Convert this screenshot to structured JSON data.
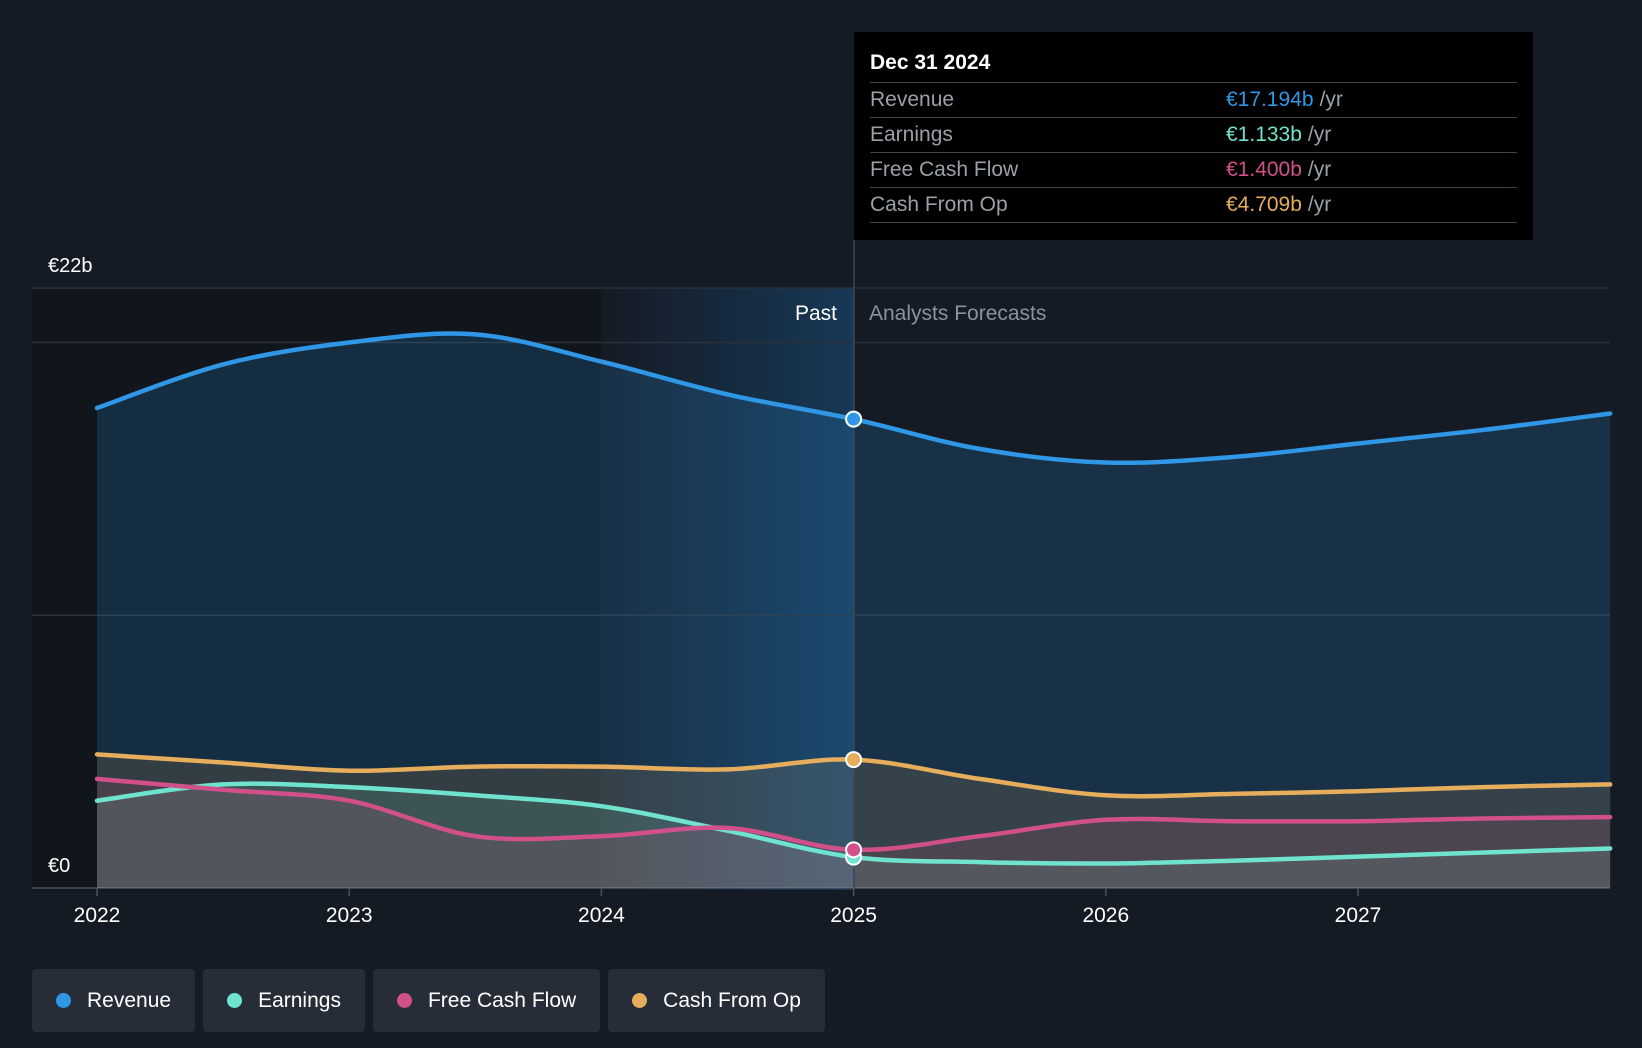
{
  "chart_data": {
    "type": "area",
    "y_axis": {
      "min": 0,
      "max": 22,
      "top_label": "€22b",
      "bottom_label": "€0"
    },
    "x_ticks": [
      "2022",
      "2023",
      "2024",
      "2025",
      "2026",
      "2027"
    ],
    "divider": {
      "x": 2025,
      "past_label": "Past",
      "forecast_label": "Analysts Forecasts"
    },
    "series": [
      {
        "name": "Revenue",
        "color": "#2f97e6",
        "points": [
          [
            2022,
            17.6
          ],
          [
            2022.5,
            19.2
          ],
          [
            2023,
            20.0
          ],
          [
            2023.5,
            20.3
          ],
          [
            2024,
            19.3
          ],
          [
            2024.5,
            18.1
          ],
          [
            2025,
            17.194
          ],
          [
            2025.5,
            16.1
          ],
          [
            2026,
            15.6
          ],
          [
            2026.5,
            15.8
          ],
          [
            2027,
            16.3
          ],
          [
            2027.5,
            16.8
          ],
          [
            2028,
            17.4
          ]
        ]
      },
      {
        "name": "Earnings",
        "color": "#6fe3cd",
        "points": [
          [
            2022,
            3.2
          ],
          [
            2022.5,
            3.8
          ],
          [
            2023,
            3.7
          ],
          [
            2023.5,
            3.4
          ],
          [
            2024,
            3.0
          ],
          [
            2024.5,
            2.1
          ],
          [
            2025,
            1.133
          ],
          [
            2025.5,
            0.95
          ],
          [
            2026,
            0.9
          ],
          [
            2026.5,
            1.0
          ],
          [
            2027,
            1.15
          ],
          [
            2027.5,
            1.3
          ],
          [
            2028,
            1.45
          ]
        ]
      },
      {
        "name": "Free Cash Flow",
        "color": "#d1508a",
        "points": [
          [
            2022,
            4.0
          ],
          [
            2022.5,
            3.6
          ],
          [
            2023,
            3.2
          ],
          [
            2023.5,
            1.9
          ],
          [
            2024,
            1.9
          ],
          [
            2024.5,
            2.2
          ],
          [
            2025,
            1.4
          ],
          [
            2025.5,
            1.9
          ],
          [
            2026,
            2.5
          ],
          [
            2026.5,
            2.45
          ],
          [
            2027,
            2.45
          ],
          [
            2027.5,
            2.55
          ],
          [
            2028,
            2.6
          ]
        ]
      },
      {
        "name": "Cash From Op",
        "color": "#e6ad5c",
        "points": [
          [
            2022,
            4.9
          ],
          [
            2022.5,
            4.6
          ],
          [
            2023,
            4.3
          ],
          [
            2023.5,
            4.45
          ],
          [
            2024,
            4.45
          ],
          [
            2024.5,
            4.35
          ],
          [
            2025,
            4.709
          ],
          [
            2025.5,
            4.0
          ],
          [
            2026,
            3.4
          ],
          [
            2026.5,
            3.45
          ],
          [
            2027,
            3.55
          ],
          [
            2027.5,
            3.7
          ],
          [
            2028,
            3.8
          ]
        ]
      }
    ],
    "tooltip": {
      "date": "Dec 31 2024",
      "rows": [
        {
          "label": "Revenue",
          "value": "€17.194b",
          "unit": "/yr",
          "color": "#2f97e6"
        },
        {
          "label": "Earnings",
          "value": "€1.133b",
          "unit": "/yr",
          "color": "#6fe3cd"
        },
        {
          "label": "Free Cash Flow",
          "value": "€1.400b",
          "unit": "/yr",
          "color": "#d1508a"
        },
        {
          "label": "Cash From Op",
          "value": "€4.709b",
          "unit": "/yr",
          "color": "#e6ad5c"
        }
      ]
    },
    "legend": [
      {
        "label": "Revenue",
        "color": "#2f97e6"
      },
      {
        "label": "Earnings",
        "color": "#6fe3cd"
      },
      {
        "label": "Free Cash Flow",
        "color": "#d1508a"
      },
      {
        "label": "Cash From Op",
        "color": "#e6ad5c"
      }
    ]
  }
}
